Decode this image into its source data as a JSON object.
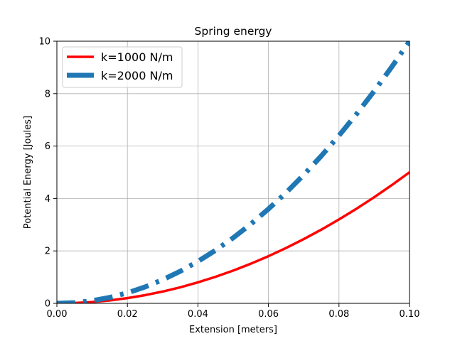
{
  "chart_data": {
    "type": "line",
    "title": "Spring energy",
    "xlabel": "Extension [meters]",
    "ylabel": "Potential Energy [Joules]",
    "xlim": [
      0,
      0.1
    ],
    "ylim": [
      0,
      10
    ],
    "x_ticks": [
      "0.00",
      "0.02",
      "0.04",
      "0.06",
      "0.08",
      "0.10"
    ],
    "y_ticks": [
      "0",
      "2",
      "4",
      "6",
      "8",
      "10"
    ],
    "grid": true,
    "legend_position": "top-left",
    "x": [
      0.0,
      0.005,
      0.01,
      0.015,
      0.02,
      0.025,
      0.03,
      0.035,
      0.04,
      0.045,
      0.05,
      0.055,
      0.06,
      0.065,
      0.07,
      0.075,
      0.08,
      0.085,
      0.09,
      0.095,
      0.1
    ],
    "series": [
      {
        "name": "k=1000 N/m",
        "color": "#ff0000",
        "line_style": "solid",
        "values": [
          0.0,
          0.0125,
          0.05,
          0.1125,
          0.2,
          0.3125,
          0.45,
          0.6125,
          0.8,
          1.0125,
          1.25,
          1.5125,
          1.8,
          2.1125,
          2.45,
          2.8125,
          3.2,
          3.6125,
          4.05,
          4.5125,
          5.0
        ]
      },
      {
        "name": "k=2000 N/m",
        "color": "#1f77b4",
        "line_style": "dashdot",
        "values": [
          0.0,
          0.025,
          0.1,
          0.225,
          0.4,
          0.625,
          0.9,
          1.225,
          1.6,
          2.025,
          2.5,
          3.025,
          3.6,
          4.225,
          4.9,
          5.625,
          6.4,
          7.225,
          8.1,
          9.025,
          10.0
        ]
      }
    ]
  }
}
